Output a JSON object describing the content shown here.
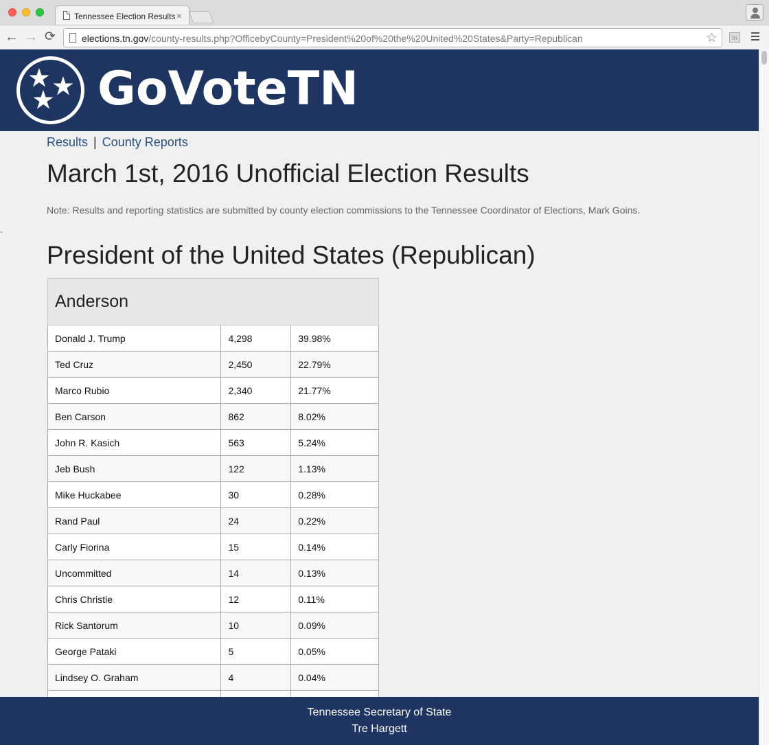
{
  "browser": {
    "tab_title": "Tennessee Election Results",
    "tab_close": "×",
    "url_host": "elections.tn.gov",
    "url_path": "/county-results.php?OfficebyCounty=President%20of%20the%20United%20States&Party=Republican",
    "back_icon": "←",
    "forward_icon": "→",
    "reload_icon": "⟳",
    "star_icon": "☆",
    "extension_label": "In"
  },
  "header": {
    "brand": "GoVoteTN"
  },
  "nav": {
    "results": "Results",
    "separator": "|",
    "county_reports": "County Reports"
  },
  "page": {
    "title": "March 1st, 2016 Unofficial Election Results",
    "note": "Note: Results and reporting statistics are submitted by county election commissions to the Tennessee Coordinator of Elections, Mark Goins.",
    "stray": ".",
    "race_title": "President of the United States (Republican)"
  },
  "county": {
    "name": "Anderson",
    "rows": [
      {
        "candidate": "Donald J. Trump",
        "votes": "4,298",
        "percent": "39.98%"
      },
      {
        "candidate": "Ted Cruz",
        "votes": "2,450",
        "percent": "22.79%"
      },
      {
        "candidate": "Marco Rubio",
        "votes": "2,340",
        "percent": "21.77%"
      },
      {
        "candidate": "Ben Carson",
        "votes": "862",
        "percent": "8.02%"
      },
      {
        "candidate": "John R. Kasich",
        "votes": "563",
        "percent": "5.24%"
      },
      {
        "candidate": "Jeb Bush",
        "votes": "122",
        "percent": "1.13%"
      },
      {
        "candidate": "Mike Huckabee",
        "votes": "30",
        "percent": "0.28%"
      },
      {
        "candidate": "Rand Paul",
        "votes": "24",
        "percent": "0.22%"
      },
      {
        "candidate": "Carly Fiorina",
        "votes": "15",
        "percent": "0.14%"
      },
      {
        "candidate": "Uncommitted",
        "votes": "14",
        "percent": "0.13%"
      },
      {
        "candidate": "Chris Christie",
        "votes": "12",
        "percent": "0.11%"
      },
      {
        "candidate": "Rick Santorum",
        "votes": "10",
        "percent": "0.09%"
      },
      {
        "candidate": "George Pataki",
        "votes": "5",
        "percent": "0.05%"
      },
      {
        "candidate": "Lindsey O. Graham",
        "votes": "4",
        "percent": "0.04%"
      },
      {
        "candidate": "",
        "votes": "",
        "percent": ""
      }
    ]
  },
  "footer": {
    "line1": "Tennessee Secretary of State",
    "line2": "Tre Hargett"
  }
}
